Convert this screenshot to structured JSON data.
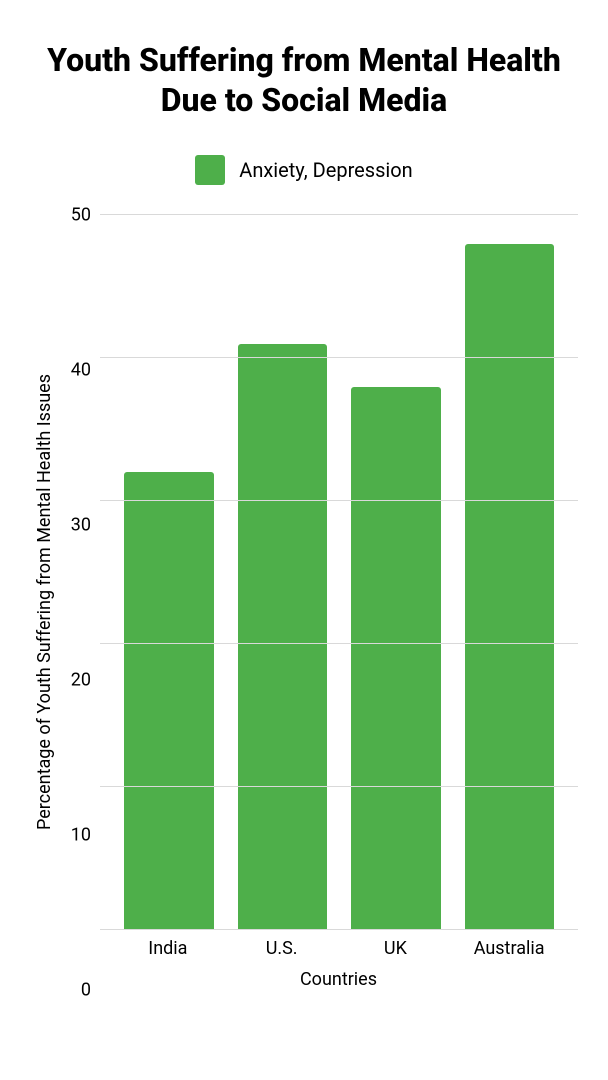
{
  "chart": {
    "type": "bar",
    "title": "Youth Suffering from Mental Health Due to Social Media",
    "title_fontsize": 32,
    "title_fontweight": 800,
    "legend": {
      "label": "Anxiety, Depression",
      "swatch_color": "#4eaf4a",
      "fontsize": 20
    },
    "xlabel": "Countries",
    "ylabel": "Percentage of Youth Suffering from Mental Health Issues",
    "label_fontsize": 18,
    "tick_fontsize": 18,
    "categories": [
      "India",
      "U.S.",
      "UK",
      "Australia"
    ],
    "values": [
      32,
      41,
      38,
      48
    ],
    "bar_color": "#4eaf4a",
    "bar_width": 0.72,
    "ylim": [
      0,
      50
    ],
    "ytick_step": 10,
    "yticks": [
      0,
      10,
      20,
      30,
      40,
      50
    ],
    "grid_color": "#d9d9d9",
    "background_color": "#ffffff",
    "text_color": "#000000"
  }
}
